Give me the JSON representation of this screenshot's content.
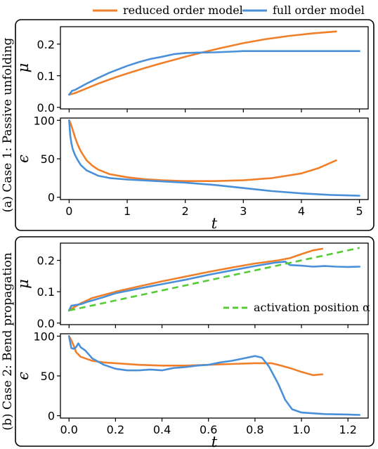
{
  "legend": {
    "reduced_label": "reduced order model",
    "full_label": "full order model",
    "activation_label": "activation position α"
  },
  "colors": {
    "reduced": "#f07f2a",
    "full": "#4a90d9",
    "activation": "#55cc33"
  },
  "panels": {
    "a": {
      "title": "(a) Case 1: Passive unfolding"
    },
    "b": {
      "title": "(b) Case 2: Bend propagation"
    }
  },
  "chart_data": [
    {
      "id": "a-mu",
      "type": "line",
      "xlabel": "",
      "ylabel": "μ",
      "xlim": [
        -0.15,
        5.15
      ],
      "ylim": [
        -0.005,
        0.255
      ],
      "xticks": [
        0,
        1,
        2,
        3,
        4,
        5
      ],
      "yticks": [
        0.0,
        0.1,
        0.2
      ],
      "ytick_labels": [
        "0.0",
        "0.1",
        "0.2"
      ],
      "show_xtick_labels": false,
      "series": [
        {
          "name": "reduced order model",
          "color": "#f07f2a",
          "x": [
            0,
            0.1,
            0.3,
            0.5,
            0.8,
            1.0,
            1.3,
            1.6,
            2.0,
            2.3,
            2.6,
            3.0,
            3.4,
            3.8,
            4.2,
            4.6
          ],
          "y": [
            0.04,
            0.045,
            0.06,
            0.075,
            0.095,
            0.107,
            0.124,
            0.14,
            0.16,
            0.174,
            0.187,
            0.203,
            0.216,
            0.226,
            0.234,
            0.24
          ]
        },
        {
          "name": "full order model",
          "color": "#4a90d9",
          "x": [
            0,
            0.05,
            0.1,
            0.2,
            0.3,
            0.5,
            0.7,
            1.0,
            1.2,
            1.4,
            1.6,
            1.8,
            2.0,
            2.2,
            2.5,
            2.8,
            3.0,
            3.5,
            4.0,
            4.5,
            5.0
          ],
          "y": [
            0.04,
            0.052,
            0.055,
            0.065,
            0.075,
            0.093,
            0.11,
            0.131,
            0.143,
            0.153,
            0.16,
            0.168,
            0.172,
            0.173,
            0.174,
            0.176,
            0.178,
            0.178,
            0.178,
            0.178,
            0.178
          ]
        }
      ]
    },
    {
      "id": "a-eps",
      "type": "line",
      "xlabel": "t",
      "ylabel": "ϵ",
      "xlim": [
        -0.15,
        5.15
      ],
      "ylim": [
        -3,
        103
      ],
      "xticks": [
        0,
        1,
        2,
        3,
        4,
        5
      ],
      "xtick_labels": [
        "0",
        "1",
        "2",
        "3",
        "4",
        "5"
      ],
      "yticks": [
        0,
        50,
        100
      ],
      "ytick_labels": [
        "0",
        "50",
        "100"
      ],
      "show_xtick_labels": true,
      "series": [
        {
          "name": "reduced order model",
          "color": "#f07f2a",
          "x": [
            0,
            0.03,
            0.06,
            0.1,
            0.15,
            0.2,
            0.3,
            0.4,
            0.5,
            0.7,
            1.0,
            1.3,
            1.6,
            2.0,
            2.5,
            3.0,
            3.5,
            4.0,
            4.3,
            4.6
          ],
          "y": [
            100,
            95,
            88,
            78,
            68,
            60,
            48,
            41,
            36,
            30,
            26,
            23.5,
            22,
            21,
            21,
            22,
            25,
            31,
            38,
            48
          ]
        },
        {
          "name": "full order model",
          "color": "#4a90d9",
          "x": [
            0,
            0.02,
            0.04,
            0.06,
            0.1,
            0.15,
            0.2,
            0.3,
            0.5,
            0.7,
            1.0,
            1.5,
            2.0,
            2.5,
            3.0,
            3.5,
            4.0,
            4.5,
            5.0
          ],
          "y": [
            100,
            80,
            70,
            63,
            55,
            48,
            42,
            35,
            28,
            25,
            23,
            21,
            19,
            16,
            12,
            8,
            5,
            3,
            2
          ]
        }
      ]
    },
    {
      "id": "b-mu",
      "type": "line",
      "xlabel": "",
      "ylabel": "μ",
      "xlim": [
        -0.037,
        1.287
      ],
      "ylim": [
        -0.005,
        0.255
      ],
      "xticks": [
        0.0,
        0.2,
        0.4,
        0.6,
        0.8,
        1.0,
        1.2
      ],
      "yticks": [
        0.0,
        0.1,
        0.2
      ],
      "ytick_labels": [
        "0.0",
        "0.1",
        "0.2"
      ],
      "show_xtick_labels": false,
      "series": [
        {
          "name": "reduced order model",
          "color": "#f07f2a",
          "x": [
            0,
            0.02,
            0.05,
            0.1,
            0.2,
            0.3,
            0.4,
            0.5,
            0.6,
            0.7,
            0.8,
            0.9,
            0.95,
            1.0,
            1.05,
            1.09
          ],
          "y": [
            0.04,
            0.05,
            0.063,
            0.08,
            0.1,
            0.117,
            0.133,
            0.148,
            0.163,
            0.177,
            0.19,
            0.2,
            0.207,
            0.22,
            0.232,
            0.237
          ]
        },
        {
          "name": "full order model",
          "color": "#4a90d9",
          "x": [
            0,
            0.01,
            0.03,
            0.05,
            0.08,
            0.1,
            0.15,
            0.2,
            0.3,
            0.4,
            0.5,
            0.6,
            0.7,
            0.8,
            0.88,
            0.93,
            0.95,
            1.0,
            1.05,
            1.1,
            1.15,
            1.2,
            1.25
          ],
          "y": [
            0.04,
            0.055,
            0.058,
            0.06,
            0.068,
            0.072,
            0.083,
            0.095,
            0.11,
            0.124,
            0.138,
            0.154,
            0.168,
            0.182,
            0.192,
            0.196,
            0.185,
            0.183,
            0.18,
            0.182,
            0.18,
            0.179,
            0.18
          ]
        },
        {
          "name": "activation position α",
          "color": "#55cc33",
          "dashed": true,
          "x": [
            0,
            1.25
          ],
          "y": [
            0.04,
            0.24
          ]
        }
      ]
    },
    {
      "id": "b-eps",
      "type": "line",
      "xlabel": "t",
      "ylabel": "ϵ",
      "xlim": [
        -0.037,
        1.287
      ],
      "ylim": [
        -3,
        103
      ],
      "xticks": [
        0.0,
        0.2,
        0.4,
        0.6,
        0.8,
        1.0,
        1.2
      ],
      "xtick_labels": [
        "0.0",
        "0.2",
        "0.4",
        "0.6",
        "0.8",
        "1.0",
        "1.2"
      ],
      "yticks": [
        0,
        50,
        100
      ],
      "ytick_labels": [
        "0",
        "50",
        "100"
      ],
      "show_xtick_labels": true,
      "series": [
        {
          "name": "reduced order model",
          "color": "#f07f2a",
          "x": [
            0,
            0.01,
            0.02,
            0.03,
            0.05,
            0.08,
            0.1,
            0.15,
            0.2,
            0.3,
            0.4,
            0.5,
            0.6,
            0.7,
            0.8,
            0.87,
            0.9,
            0.95,
            1.0,
            1.05,
            1.09
          ],
          "y": [
            100,
            95,
            88,
            80,
            74,
            71,
            69,
            67,
            66,
            64,
            63,
            63,
            64,
            65,
            66,
            66,
            64,
            60,
            55,
            51,
            52
          ]
        },
        {
          "name": "full order model",
          "color": "#4a90d9",
          "x": [
            0,
            0.01,
            0.02,
            0.03,
            0.04,
            0.05,
            0.07,
            0.1,
            0.15,
            0.2,
            0.25,
            0.3,
            0.35,
            0.4,
            0.45,
            0.5,
            0.55,
            0.6,
            0.65,
            0.7,
            0.75,
            0.8,
            0.83,
            0.86,
            0.9,
            0.93,
            0.96,
            1.0,
            1.05,
            1.1,
            1.2,
            1.25
          ],
          "y": [
            100,
            85,
            84,
            86,
            91,
            86,
            82,
            72,
            64,
            59,
            57,
            57,
            58,
            57,
            60,
            61,
            63,
            64,
            67,
            69,
            72,
            75,
            73,
            62,
            40,
            20,
            8,
            4,
            3,
            2,
            1.5,
            1
          ]
        }
      ]
    }
  ]
}
